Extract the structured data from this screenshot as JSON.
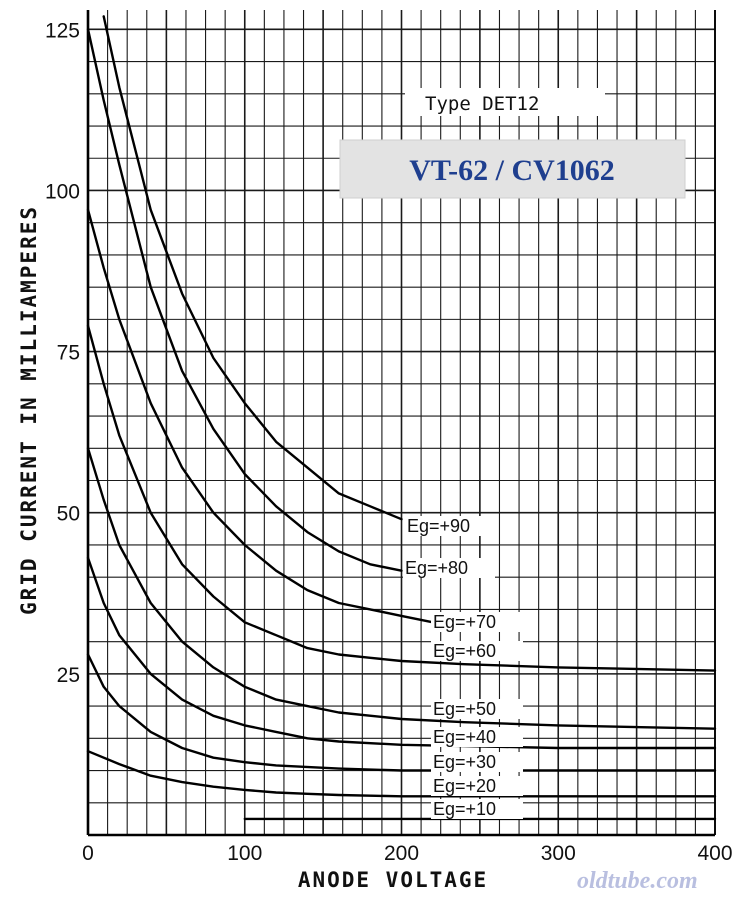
{
  "chart_data": {
    "type": "line",
    "title_box": "VT-62 / CV1062",
    "type_label": "Type DET12",
    "xlabel": "ANODE VOLTAGE",
    "ylabel": "GRID CURRENT IN MILLIAMPERES",
    "xlim": [
      0,
      400
    ],
    "ylim": [
      0,
      128
    ],
    "x_ticks": [
      "0",
      "100",
      "200",
      "300",
      "400"
    ],
    "y_ticks": [
      "25",
      "50",
      "75",
      "100",
      "125"
    ],
    "grid": true,
    "series": [
      {
        "name": "Eg=+90",
        "x": [
          10,
          20,
          40,
          60,
          80,
          100,
          120,
          140,
          160,
          180,
          200
        ],
        "y": [
          127,
          116,
          97,
          84,
          74,
          67,
          61,
          57,
          53,
          51,
          49
        ]
      },
      {
        "name": "Eg=+80",
        "x": [
          0,
          10,
          20,
          40,
          60,
          80,
          100,
          120,
          140,
          160,
          180,
          200
        ],
        "y": [
          125,
          114,
          104,
          85,
          72,
          63,
          56,
          51,
          47,
          44,
          42,
          41
        ]
      },
      {
        "name": "Eg=+70",
        "x": [
          0,
          10,
          20,
          40,
          60,
          80,
          100,
          120,
          140,
          160,
          180,
          200,
          220
        ],
        "y": [
          97,
          88,
          80,
          67,
          57,
          50,
          45,
          41,
          38,
          36,
          35,
          34,
          33
        ]
      },
      {
        "name": "Eg=+60",
        "x": [
          0,
          10,
          20,
          40,
          60,
          80,
          100,
          120,
          140,
          160,
          180,
          200,
          240,
          300,
          400
        ],
        "y": [
          79,
          70,
          62,
          50,
          42,
          37,
          33,
          31,
          29,
          28,
          27.5,
          27,
          26.5,
          26,
          25.5
        ]
      },
      {
        "name": "Eg=+50",
        "x": [
          0,
          10,
          20,
          40,
          60,
          80,
          100,
          120,
          140,
          160,
          200,
          240,
          300,
          400
        ],
        "y": [
          60,
          52,
          45,
          36,
          30,
          26,
          23,
          21,
          20,
          19,
          18,
          17.5,
          17,
          16.5
        ]
      },
      {
        "name": "Eg=+40",
        "x": [
          0,
          10,
          20,
          40,
          60,
          80,
          100,
          120,
          140,
          160,
          200,
          240,
          300,
          400
        ],
        "y": [
          43,
          36,
          31,
          25,
          21,
          18.5,
          17,
          16,
          15,
          14.5,
          14,
          13.8,
          13.5,
          13.5
        ]
      },
      {
        "name": "Eg=+30",
        "x": [
          0,
          10,
          20,
          40,
          60,
          80,
          100,
          120,
          160,
          200,
          240,
          300,
          400
        ],
        "y": [
          28,
          23,
          20,
          16,
          13.5,
          12,
          11.3,
          10.8,
          10.3,
          10,
          10,
          10,
          10
        ]
      },
      {
        "name": "Eg=+20",
        "x": [
          0,
          20,
          40,
          60,
          80,
          100,
          120,
          140,
          160,
          200,
          240,
          300,
          400
        ],
        "y": [
          13,
          11,
          9.2,
          8.2,
          7.5,
          7,
          6.6,
          6.4,
          6.2,
          6,
          6,
          6,
          6
        ]
      },
      {
        "name": "Eg=+10",
        "x": [
          100,
          140,
          200,
          300,
          400
        ],
        "y": [
          2.5,
          2.5,
          2.5,
          2.5,
          2.5
        ]
      }
    ],
    "watermark": "oldtube.com"
  }
}
